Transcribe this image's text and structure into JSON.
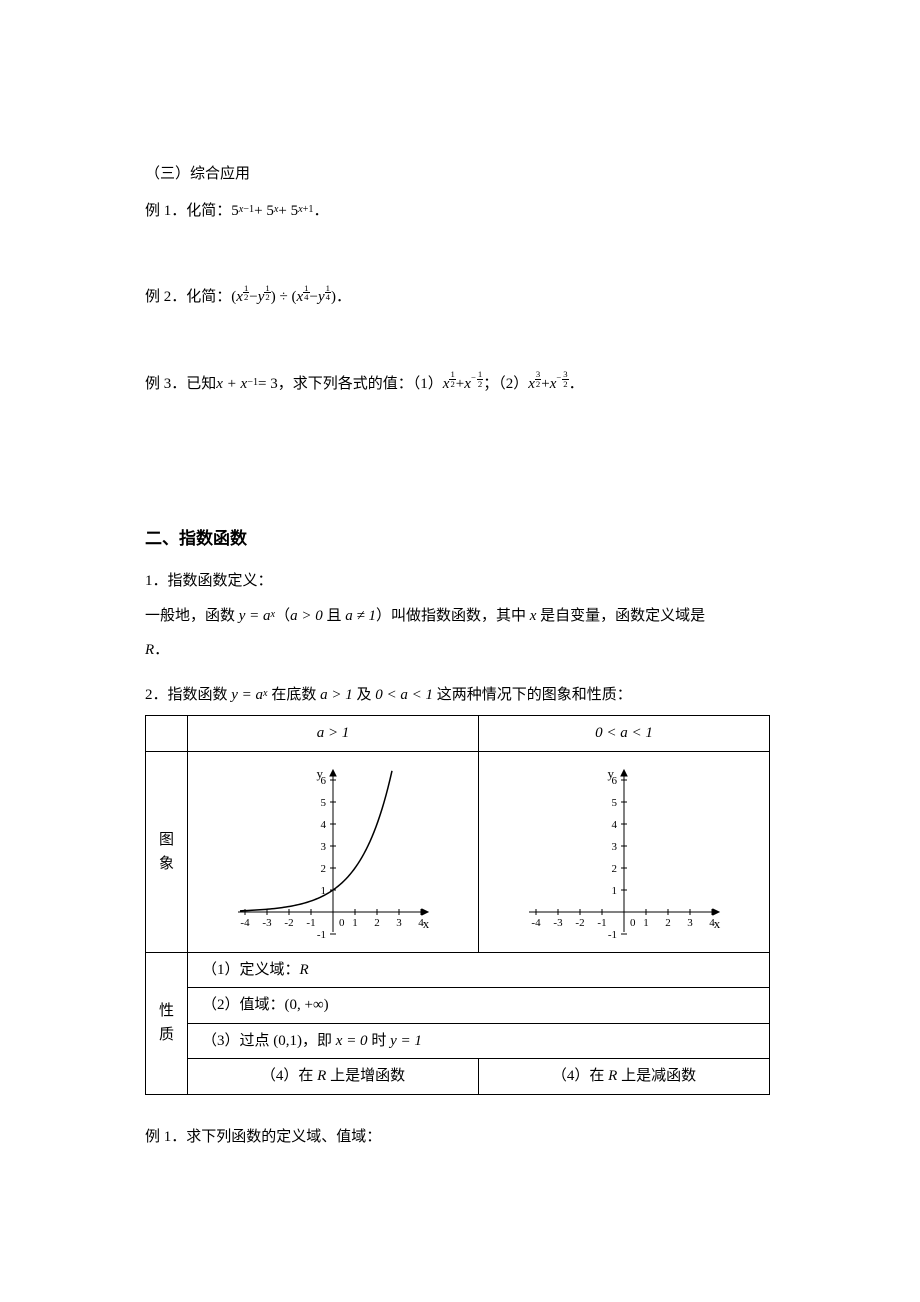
{
  "section_a": {
    "heading": "（三）综合应用",
    "ex1": {
      "label": "例 1．化简：",
      "expr": "5",
      "e1a": "x",
      "e1b": "−1",
      "plus1": " + 5",
      "e2": "x",
      "plus2": " + 5",
      "e3a": "x",
      "e3b": "+1",
      "end": "．"
    },
    "ex2": {
      "label": "例 2．化简：",
      "lpar": "(",
      "x": "x",
      "n1": "1",
      "d1": "2",
      "minus1": " − ",
      "y": "y",
      "n2": "1",
      "d2": "2",
      "rpar": ") ÷ (",
      "x2": "x",
      "n3": "1",
      "d3": "4",
      "minus2": " − ",
      "y2": "y",
      "n4": "1",
      "d4": "4",
      "rpar2": ")",
      "end": "．"
    },
    "ex3": {
      "label": "例 3．已知 ",
      "given": "x + x",
      "inv": "−1",
      "eq": " = 3",
      "mid": "，求下列各式的值：（1）",
      "x1": "x",
      "n1": "1",
      "d1": "2",
      "plus1": " + ",
      "x2": "x",
      "n2": "1",
      "d2": "2",
      "sep": "；（2）",
      "x3": "x",
      "n3": "3",
      "d3": "2",
      "plus2": " + ",
      "x4": "x",
      "n4": "3",
      "d4": "2",
      "end": "．"
    }
  },
  "section_b": {
    "heading": "二、指数函数",
    "def_title": "1．指数函数定义：",
    "def_body_a": "一般地，函数 ",
    "def_fn": "y = a",
    "def_sup": "x",
    "def_body_b": "（",
    "def_cond1": "a > 0",
    "def_body_c": " 且 ",
    "def_cond2": "a ≠ 1",
    "def_body_d": "）叫做指数函数，其中 ",
    "def_var": "x",
    "def_body_e": " 是自变量，函数定义域是",
    "def_R": "R",
    "def_end": "．",
    "table_intro_a": "2．指数函数 ",
    "table_intro_fn": "y = a",
    "table_intro_sup": "x",
    "table_intro_b": " 在底数 ",
    "table_intro_c1": "a > 1",
    "table_intro_c": " 及 ",
    "table_intro_c2": "0 < a < 1",
    "table_intro_d": " 这两种情况下的图象和性质：",
    "col1": "a > 1",
    "col2": "0 < a < 1",
    "row_graph": "图\n象",
    "row_prop": "性\n质",
    "prop1_a": "（1）定义域：",
    "prop1_b": "R",
    "prop2_a": "（2）值域：",
    "prop2_b": "(0, +∞)",
    "prop3_a": "（3）过点 ",
    "prop3_b": "(0,1)",
    "prop3_c": "，即 ",
    "prop3_d": "x = 0",
    "prop3_e": " 时 ",
    "prop3_f": "y = 1",
    "prop4a_a": "（4）在 ",
    "prop4a_b": "R",
    "prop4a_c": " 上是增函数",
    "prop4b_a": "（4）在 ",
    "prop4b_b": "R",
    "prop4b_c": " 上是减函数"
  },
  "graph": {
    "x_ticks": [
      -4,
      -3,
      -2,
      -1,
      0,
      1,
      2,
      3,
      4
    ],
    "y_ticks": [
      -1,
      1,
      2,
      3,
      4,
      5,
      6
    ],
    "y_label": "y",
    "x_label": "x",
    "axis_color": "#000000",
    "curve_color": "#000000",
    "curve_width": 1.5
  },
  "section_c": {
    "ex1": "例 1．求下列函数的定义域、值域："
  }
}
